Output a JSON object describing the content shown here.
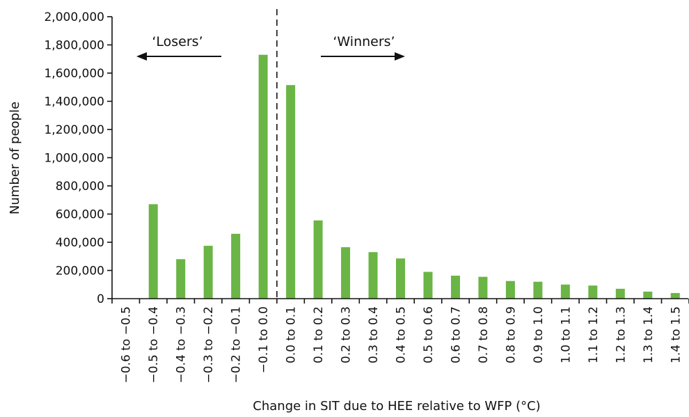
{
  "chart_data": {
    "type": "bar",
    "ylabel": "Number of people",
    "xlabel": "Change in SIT due to HEE relative to WFP (°C)",
    "ylim": [
      0,
      2000000
    ],
    "yticks": [
      0,
      200000,
      400000,
      600000,
      800000,
      1000000,
      1200000,
      1400000,
      1600000,
      1800000,
      2000000
    ],
    "ytick_labels": [
      "0",
      "200,000",
      "400,000",
      "600,000",
      "800,000",
      "1,000,000",
      "1,200,000",
      "1,400,000",
      "1,600,000",
      "1,800,000",
      "2,000,000"
    ],
    "categories": [
      "−0.6 to −0.5",
      "−0.5 to −0.4",
      "−0.4 to −0.3",
      "−0.3 to −0.2",
      "−0.2 to −0.1",
      "−0.1 to 0.0",
      "0.0 to 0.1",
      "0.1 to 0.2",
      "0.2 to 0.3",
      "0.3 to 0.4",
      "0.4 to 0.5",
      "0.5 to 0.6",
      "0.6 to 0.7",
      "0.7 to 0.8",
      "0.8 to 0.9",
      "0.9 to 1.0",
      "1.0 to 1.1",
      "1.1 to 1.2",
      "1.2 to 1.3",
      "1.3 to 1.4",
      "1.4 to 1.5"
    ],
    "values": [
      0,
      670000,
      280000,
      375000,
      460000,
      1730000,
      1515000,
      555000,
      365000,
      330000,
      285000,
      190000,
      163000,
      155000,
      125000,
      120000,
      100000,
      93000,
      70000,
      50000,
      40000
    ],
    "bar_color": "#6ab545",
    "grid": false,
    "annotations": {
      "losers_label": "‘Losers’",
      "winners_label": "‘Winners’"
    }
  }
}
